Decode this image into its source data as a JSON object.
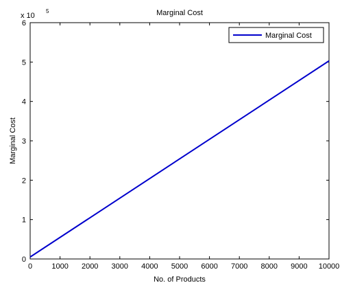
{
  "chart_data": {
    "type": "line",
    "title": "Marginal Cost",
    "xlabel": "No. of Products",
    "ylabel": "Marginal Cost",
    "xlim": [
      0,
      10000
    ],
    "ylim": [
      0,
      600000
    ],
    "x_ticks": [
      0,
      1000,
      2000,
      3000,
      4000,
      5000,
      6000,
      7000,
      8000,
      9000,
      10000
    ],
    "y_ticks": [
      0,
      100000,
      200000,
      300000,
      400000,
      500000,
      600000
    ],
    "y_tick_labels": [
      "0",
      "1",
      "2",
      "3",
      "4",
      "5",
      "6"
    ],
    "y_exponent_base": "x 10",
    "y_exponent_power": "5",
    "grid": false,
    "legend_position": "top-right",
    "series": [
      {
        "name": "Marginal Cost",
        "color": "#0000cc",
        "x": [
          0,
          10000
        ],
        "y": [
          5000,
          503000
        ]
      }
    ]
  }
}
